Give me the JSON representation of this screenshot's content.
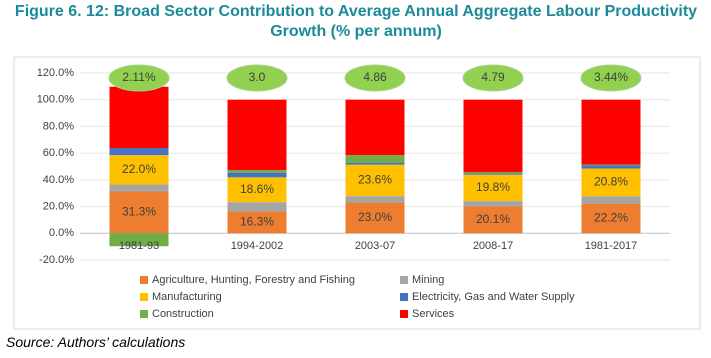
{
  "chart_data": {
    "type": "stacked_bar",
    "title": "Figure 6. 12: Broad Sector Contribution to Average Annual Aggregate Labour Productivity Growth (% per annum)",
    "source": "Source: Authors’ calculations",
    "categories": [
      "1981-93",
      "1994-2002",
      "2003-07",
      "2008-17",
      "1981-2017"
    ],
    "annotations": [
      "2.11%",
      "3.0",
      "4.86",
      "4.79",
      "3.44%"
    ],
    "series": [
      {
        "name": "Agriculture, Hunting, Forestry and Fishing",
        "color": "#ed7d31",
        "values": [
          31.3,
          16.3,
          23.0,
          20.1,
          22.2
        ],
        "value_labels": [
          "31.3%",
          "16.3%",
          "23.0%",
          "20.1%",
          "22.2%"
        ]
      },
      {
        "name": "Mining",
        "color": "#a5a5a5",
        "values": [
          5.2,
          7.0,
          4.8,
          4.0,
          5.5
        ]
      },
      {
        "name": "Manufacturing",
        "color": "#ffc000",
        "values": [
          22.0,
          18.6,
          23.6,
          19.8,
          20.8
        ],
        "value_labels": [
          "22.0%",
          "18.6%",
          "23.6%",
          "19.8%",
          "20.8%"
        ]
      },
      {
        "name": "Electricity, Gas and Water Supply",
        "color": "#4472c4",
        "values": [
          5.3,
          3.5,
          1.5,
          1.0,
          2.5
        ]
      },
      {
        "name": "Construction",
        "color": "#70ad47",
        "values": [
          -9.7,
          2.0,
          5.6,
          1.0,
          0.5
        ]
      },
      {
        "name": "Services",
        "color": "#ff0000",
        "values": [
          45.9,
          52.6,
          41.5,
          54.1,
          48.5
        ]
      }
    ],
    "ylim": [
      -20,
      120
    ],
    "yticks": [
      {
        "value": -20,
        "label": "-20.0%"
      },
      {
        "value": 0,
        "label": "0.0%"
      },
      {
        "value": 20,
        "label": "20.0%"
      },
      {
        "value": 40,
        "label": "40.0%"
      },
      {
        "value": 60,
        "label": "60.0%"
      },
      {
        "value": 80,
        "label": "80.0%"
      },
      {
        "value": 100,
        "label": "100.0%"
      },
      {
        "value": 120,
        "label": "120.0%"
      }
    ],
    "grid": true
  }
}
